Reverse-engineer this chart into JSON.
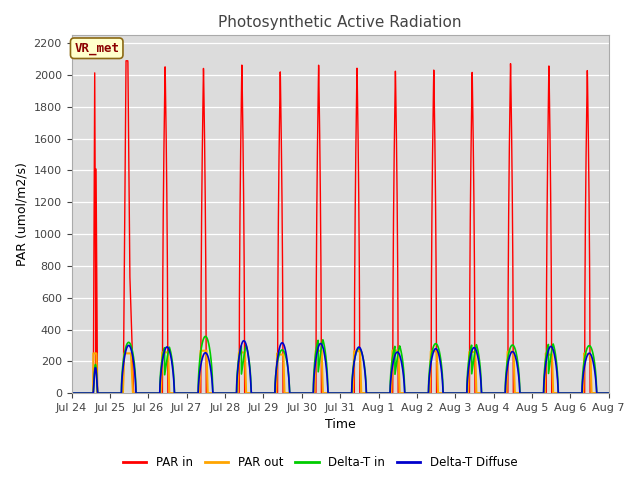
{
  "title": "Photosynthetic Active Radiation",
  "ylabel": "PAR (umol/m2/s)",
  "xlabel": "Time",
  "annotation": "VR_met",
  "ylim": [
    0,
    2250
  ],
  "yticks": [
    0,
    200,
    400,
    600,
    800,
    1000,
    1200,
    1400,
    1600,
    1800,
    2000,
    2200
  ],
  "xtick_labels": [
    "Jul 24",
    "Jul 25",
    "Jul 26",
    "Jul 27",
    "Jul 28",
    "Jul 29",
    "Jul 30",
    "Jul 31",
    "Aug 1",
    "Aug 2",
    "Aug 3",
    "Aug 4",
    "Aug 5",
    "Aug 6",
    "Aug 7"
  ],
  "colors": {
    "PAR_in": "#ff0000",
    "PAR_out": "#ffa500",
    "Delta_T_in": "#00cc00",
    "Delta_T_Diffuse": "#0000cc"
  },
  "legend_labels": [
    "PAR in",
    "PAR out",
    "Delta-T in",
    "Delta-T Diffuse"
  ],
  "fig_bg_color": "#ffffff",
  "plot_bg_color": "#dcdcdc",
  "title_fontsize": 11,
  "label_fontsize": 9,
  "tick_fontsize": 8,
  "n_days": 14,
  "pts_per_day": 288
}
